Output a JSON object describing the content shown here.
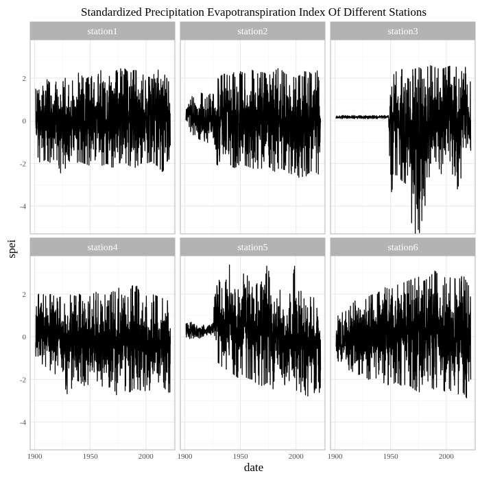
{
  "chart_data": {
    "type": "line",
    "title": "Standardized Precipitation Evapotranspiration Index Of Different Stations",
    "xlabel": "date",
    "ylabel": "spei",
    "xlim": [
      1896,
      2026
    ],
    "ylim": [
      -5.3,
      3.8
    ],
    "xticks": [
      1900,
      1950,
      2000
    ],
    "yticks": [
      -4,
      -2,
      0,
      2
    ],
    "grid": true,
    "facets": [
      {
        "name": "station1",
        "start_year": 1901,
        "end_year": 2022,
        "envelope": [
          [
            1901,
            -1.4,
            1.5
          ],
          [
            1905,
            -2.0,
            1.8
          ],
          [
            1910,
            -1.8,
            2.0
          ],
          [
            1915,
            -2.0,
            1.7
          ],
          [
            1920,
            -1.9,
            2.2
          ],
          [
            1925,
            -2.7,
            1.8
          ],
          [
            1930,
            -1.8,
            2.2
          ],
          [
            1935,
            -2.2,
            1.8
          ],
          [
            1940,
            -1.9,
            2.3
          ],
          [
            1945,
            -2.0,
            1.9
          ],
          [
            1950,
            -2.1,
            2.1
          ],
          [
            1955,
            -1.8,
            2.0
          ],
          [
            1960,
            -2.1,
            2.4
          ],
          [
            1965,
            -2.0,
            2.0
          ],
          [
            1970,
            -2.2,
            2.2
          ],
          [
            1975,
            -2.0,
            2.4
          ],
          [
            1980,
            -1.9,
            2.5
          ],
          [
            1985,
            -2.1,
            2.2
          ],
          [
            1990,
            -2.2,
            2.4
          ],
          [
            1995,
            -2.0,
            2.2
          ],
          [
            2000,
            -2.0,
            2.1
          ],
          [
            2005,
            -1.9,
            2.0
          ],
          [
            2010,
            -2.1,
            2.4
          ],
          [
            2015,
            -2.4,
            2.3
          ],
          [
            2020,
            -1.8,
            1.9
          ],
          [
            2022,
            -1.8,
            1.5
          ]
        ]
      },
      {
        "name": "station2",
        "start_year": 1901,
        "end_year": 2022,
        "envelope": [
          [
            1901,
            -0.1,
            0.6
          ],
          [
            1905,
            -0.5,
            1.2
          ],
          [
            1910,
            -0.8,
            1.0
          ],
          [
            1915,
            -0.9,
            1.3
          ],
          [
            1920,
            -1.0,
            1.1
          ],
          [
            1925,
            -1.2,
            1.4
          ],
          [
            1928,
            -2.0,
            1.8
          ],
          [
            1930,
            -2.1,
            2.0
          ],
          [
            1935,
            -2.2,
            2.2
          ],
          [
            1940,
            -2.1,
            2.1
          ],
          [
            1945,
            -2.2,
            2.3
          ],
          [
            1950,
            -2.0,
            2.3
          ],
          [
            1955,
            -2.1,
            2.2
          ],
          [
            1960,
            -2.2,
            2.4
          ],
          [
            1965,
            -2.3,
            2.2
          ],
          [
            1970,
            -2.2,
            2.3
          ],
          [
            1975,
            -2.1,
            2.1
          ],
          [
            1980,
            -2.4,
            2.3
          ],
          [
            1985,
            -2.2,
            2.5
          ],
          [
            1990,
            -2.3,
            2.2
          ],
          [
            1995,
            -2.5,
            2.1
          ],
          [
            2000,
            -2.4,
            2.0
          ],
          [
            2005,
            -2.9,
            2.2
          ],
          [
            2010,
            -2.5,
            2.4
          ],
          [
            2015,
            -2.3,
            2.1
          ],
          [
            2020,
            -2.5,
            2.4
          ],
          [
            2022,
            -1.7,
            1.6
          ]
        ]
      },
      {
        "name": "station3",
        "start_year": 1901,
        "end_year": 2022,
        "envelope": [
          [
            1901,
            0.1,
            0.25
          ],
          [
            1920,
            0.1,
            0.25
          ],
          [
            1940,
            0.1,
            0.25
          ],
          [
            1948,
            0.1,
            0.25
          ],
          [
            1950,
            -3.5,
            2.0
          ],
          [
            1955,
            -2.5,
            2.3
          ],
          [
            1960,
            -2.8,
            2.4
          ],
          [
            1965,
            -3.0,
            2.6
          ],
          [
            1970,
            -5.3,
            2.4
          ],
          [
            1975,
            -5.3,
            2.5
          ],
          [
            1980,
            -5.0,
            2.4
          ],
          [
            1985,
            -2.5,
            2.6
          ],
          [
            1990,
            -2.4,
            2.5
          ],
          [
            1995,
            -2.5,
            2.4
          ],
          [
            2000,
            -2.3,
            2.5
          ],
          [
            2005,
            -2.4,
            2.6
          ],
          [
            2010,
            -3.2,
            2.5
          ],
          [
            2015,
            -2.4,
            2.6
          ],
          [
            2020,
            -2.3,
            2.4
          ],
          [
            2022,
            -1.7,
            1.7
          ]
        ]
      },
      {
        "name": "station4",
        "start_year": 1901,
        "end_year": 2022,
        "envelope": [
          [
            1901,
            -0.9,
            1.8
          ],
          [
            1905,
            -1.2,
            2.1
          ],
          [
            1910,
            -1.4,
            1.9
          ],
          [
            1915,
            -1.6,
            2.0
          ],
          [
            1920,
            -1.8,
            1.8
          ],
          [
            1925,
            -2.0,
            1.9
          ],
          [
            1930,
            -2.8,
            2.0
          ],
          [
            1935,
            -2.2,
            1.9
          ],
          [
            1940,
            -2.1,
            2.0
          ],
          [
            1945,
            -2.3,
            1.8
          ],
          [
            1950,
            -2.2,
            1.9
          ],
          [
            1955,
            -2.0,
            2.1
          ],
          [
            1960,
            -2.3,
            1.9
          ],
          [
            1965,
            -2.4,
            2.0
          ],
          [
            1970,
            -2.3,
            2.1
          ],
          [
            1975,
            -2.9,
            2.3
          ],
          [
            1980,
            -2.5,
            2.2
          ],
          [
            1985,
            -2.6,
            2.1
          ],
          [
            1990,
            -2.4,
            2.6
          ],
          [
            1995,
            -2.5,
            2.0
          ],
          [
            2000,
            -2.7,
            1.9
          ],
          [
            2005,
            -2.4,
            2.0
          ],
          [
            2010,
            -2.5,
            1.9
          ],
          [
            2015,
            -2.3,
            1.8
          ],
          [
            2020,
            -2.6,
            1.7
          ],
          [
            2022,
            -2.6,
            1.5
          ]
        ]
      },
      {
        "name": "station5",
        "start_year": 1901,
        "end_year": 2022,
        "envelope": [
          [
            1901,
            0.0,
            0.6
          ],
          [
            1905,
            -0.1,
            0.7
          ],
          [
            1910,
            -0.2,
            0.6
          ],
          [
            1915,
            0.0,
            0.6
          ],
          [
            1920,
            0.1,
            0.5
          ],
          [
            1925,
            0.1,
            0.6
          ],
          [
            1928,
            -1.0,
            2.6
          ],
          [
            1930,
            -1.2,
            2.8
          ],
          [
            1935,
            -1.5,
            2.0
          ],
          [
            1940,
            -1.6,
            3.8
          ],
          [
            1945,
            -1.8,
            2.2
          ],
          [
            1950,
            -2.0,
            2.4
          ],
          [
            1955,
            -1.9,
            3.8
          ],
          [
            1960,
            -2.0,
            2.3
          ],
          [
            1965,
            -2.2,
            2.5
          ],
          [
            1970,
            -2.3,
            2.6
          ],
          [
            1975,
            -2.1,
            3.8
          ],
          [
            1980,
            -2.5,
            2.4
          ],
          [
            1985,
            -2.4,
            2.2
          ],
          [
            1990,
            -2.6,
            2.1
          ],
          [
            1995,
            -2.4,
            2.0
          ],
          [
            2000,
            -2.5,
            3.8
          ],
          [
            2005,
            -2.6,
            2.0
          ],
          [
            2010,
            -2.8,
            1.8
          ],
          [
            2015,
            -2.6,
            1.9
          ],
          [
            2020,
            -2.7,
            1.5
          ],
          [
            2022,
            -2.5,
            1.1
          ]
        ]
      },
      {
        "name": "station6",
        "start_year": 1901,
        "end_year": 2022,
        "envelope": [
          [
            1901,
            -1.0,
            0.9
          ],
          [
            1905,
            -1.3,
            1.1
          ],
          [
            1910,
            -1.5,
            1.2
          ],
          [
            1915,
            -1.6,
            1.5
          ],
          [
            1920,
            -1.8,
            1.8
          ],
          [
            1925,
            -1.7,
            1.6
          ],
          [
            1930,
            -2.0,
            1.9
          ],
          [
            1935,
            -1.9,
            2.0
          ],
          [
            1940,
            -2.0,
            2.1
          ],
          [
            1945,
            -2.2,
            2.3
          ],
          [
            1950,
            -2.3,
            2.2
          ],
          [
            1955,
            -2.1,
            2.4
          ],
          [
            1960,
            -2.3,
            2.5
          ],
          [
            1965,
            -2.2,
            2.6
          ],
          [
            1970,
            -2.4,
            2.7
          ],
          [
            1975,
            -2.6,
            2.8
          ],
          [
            1980,
            -2.5,
            2.6
          ],
          [
            1985,
            -2.3,
            2.8
          ],
          [
            1990,
            -2.5,
            3.1
          ],
          [
            1995,
            -2.4,
            2.7
          ],
          [
            2000,
            -2.6,
            2.8
          ],
          [
            2005,
            -2.5,
            2.9
          ],
          [
            2010,
            -2.7,
            2.6
          ],
          [
            2015,
            -2.6,
            2.9
          ],
          [
            2020,
            -3.0,
            2.4
          ],
          [
            2022,
            -2.0,
            1.8
          ]
        ]
      }
    ]
  }
}
